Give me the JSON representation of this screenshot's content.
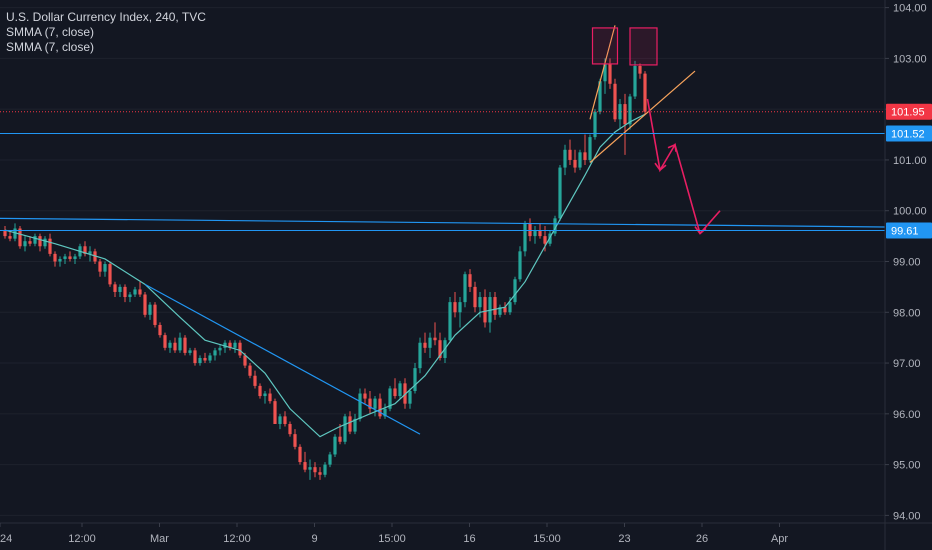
{
  "legend": {
    "title": "U.S. Dollar Currency Index, 240, TVC",
    "study1": "SMMA (7, close)",
    "study2": "SMMA (7, close)"
  },
  "colors": {
    "background": "#131722",
    "up": "#26a69a",
    "down": "#ef5350",
    "smma": "#5fc7c0",
    "trendline": "#2196f3",
    "price_line": "#f23645",
    "wedge": "#f7a35c",
    "box": "#e91e63",
    "arrow": "#e91e63",
    "axis_text": "#b2b5be"
  },
  "chart_data": {
    "type": "candlestick",
    "symbol": "U.S. Dollar Currency Index",
    "interval": "240",
    "source": "TVC",
    "y_axis": {
      "ticks": [
        104.0,
        103.0,
        102.0,
        101.0,
        100.0,
        99.0,
        98.0,
        97.0,
        96.0,
        95.0,
        94.0
      ],
      "ylim": [
        93.85,
        104.15
      ],
      "position": "right"
    },
    "x_axis": {
      "labels": [
        "24",
        "12:00",
        "Mar",
        "12:00",
        "9",
        "15:00",
        "16",
        "15:00",
        "23",
        "26",
        "Apr"
      ],
      "xlim": [
        0,
        176
      ]
    },
    "price_labels": [
      {
        "value": 101.95,
        "label": "101.95",
        "kind": "last-price"
      },
      {
        "value": 101.52,
        "label": "101.52",
        "kind": "horizontal-line"
      },
      {
        "value": 99.61,
        "label": "99.61",
        "kind": "horizontal-line"
      }
    ],
    "candles": [
      [
        0,
        99.6,
        99.7,
        99.45,
        99.5
      ],
      [
        1,
        99.5,
        99.6,
        99.4,
        99.45
      ],
      [
        2,
        99.45,
        99.75,
        99.4,
        99.65
      ],
      [
        3,
        99.65,
        99.7,
        99.25,
        99.3
      ],
      [
        4,
        99.3,
        99.5,
        99.2,
        99.4
      ],
      [
        5,
        99.4,
        99.5,
        99.3,
        99.35
      ],
      [
        6,
        99.35,
        99.55,
        99.3,
        99.5
      ],
      [
        7,
        99.5,
        99.55,
        99.2,
        99.3
      ],
      [
        8,
        99.3,
        99.5,
        99.25,
        99.45
      ],
      [
        9,
        99.45,
        99.55,
        99.1,
        99.15
      ],
      [
        10,
        99.15,
        99.2,
        98.9,
        99.0
      ],
      [
        11,
        99.0,
        99.1,
        98.9,
        99.05
      ],
      [
        12,
        99.05,
        99.15,
        98.95,
        99.1
      ],
      [
        13,
        99.1,
        99.2,
        99.0,
        99.05
      ],
      [
        14,
        99.05,
        99.15,
        98.95,
        99.1
      ],
      [
        15,
        99.1,
        99.35,
        99.05,
        99.3
      ],
      [
        16,
        99.3,
        99.4,
        99.1,
        99.15
      ],
      [
        17,
        99.15,
        99.3,
        99.0,
        99.2
      ],
      [
        18,
        99.2,
        99.25,
        98.95,
        99.0
      ],
      [
        19,
        99.0,
        99.05,
        98.7,
        98.8
      ],
      [
        20,
        98.8,
        99.0,
        98.7,
        98.95
      ],
      [
        21,
        98.95,
        99.0,
        98.5,
        98.55
      ],
      [
        22,
        98.55,
        98.6,
        98.3,
        98.4
      ],
      [
        23,
        98.4,
        98.55,
        98.3,
        98.5
      ],
      [
        24,
        98.5,
        98.55,
        98.2,
        98.3
      ],
      [
        25,
        98.3,
        98.4,
        98.2,
        98.35
      ],
      [
        26,
        98.35,
        98.5,
        98.3,
        98.45
      ],
      [
        27,
        98.45,
        98.6,
        98.3,
        98.35
      ],
      [
        28,
        98.35,
        98.4,
        97.9,
        97.95
      ],
      [
        29,
        97.95,
        98.2,
        97.85,
        98.15
      ],
      [
        30,
        98.15,
        98.2,
        97.7,
        97.75
      ],
      [
        31,
        97.75,
        97.8,
        97.5,
        97.55
      ],
      [
        32,
        97.55,
        97.6,
        97.25,
        97.3
      ],
      [
        33,
        97.3,
        97.45,
        97.2,
        97.4
      ],
      [
        34,
        97.4,
        97.5,
        97.2,
        97.25
      ],
      [
        35,
        97.25,
        97.6,
        97.2,
        97.5
      ],
      [
        36,
        97.5,
        97.55,
        97.15,
        97.2
      ],
      [
        37,
        97.2,
        97.3,
        97.15,
        97.25
      ],
      [
        38,
        97.25,
        97.3,
        96.95,
        97.0
      ],
      [
        39,
        97.0,
        97.15,
        96.95,
        97.1
      ],
      [
        40,
        97.1,
        97.2,
        97.0,
        97.05
      ],
      [
        41,
        97.05,
        97.2,
        97.0,
        97.15
      ],
      [
        42,
        97.15,
        97.3,
        97.05,
        97.25
      ],
      [
        43,
        97.25,
        97.35,
        97.15,
        97.3
      ],
      [
        44,
        97.3,
        97.45,
        97.2,
        97.4
      ],
      [
        45,
        97.4,
        97.45,
        97.25,
        97.3
      ],
      [
        46,
        97.3,
        97.45,
        97.2,
        97.4
      ],
      [
        47,
        97.4,
        97.45,
        97.1,
        97.15
      ],
      [
        48,
        97.15,
        97.2,
        96.9,
        96.95
      ],
      [
        49,
        96.95,
        97.0,
        96.7,
        96.75
      ],
      [
        50,
        96.75,
        96.85,
        96.5,
        96.55
      ],
      [
        51,
        96.55,
        96.6,
        96.3,
        96.35
      ],
      [
        52,
        96.35,
        96.45,
        96.2,
        96.4
      ],
      [
        53,
        96.4,
        96.5,
        96.2,
        96.25
      ],
      [
        54,
        96.25,
        96.3,
        95.8,
        95.8
      ],
      [
        55,
        95.8,
        96.0,
        95.7,
        95.95
      ],
      [
        56,
        95.95,
        96.05,
        95.75,
        95.8
      ],
      [
        57,
        95.8,
        95.85,
        95.55,
        95.6
      ],
      [
        58,
        95.6,
        95.7,
        95.3,
        95.35
      ],
      [
        59,
        95.35,
        95.4,
        95.0,
        95.05
      ],
      [
        60,
        95.05,
        95.25,
        94.85,
        94.9
      ],
      [
        61,
        94.9,
        95.1,
        94.7,
        94.95
      ],
      [
        62,
        94.95,
        95.05,
        94.75,
        94.85
      ],
      [
        63,
        94.85,
        94.95,
        94.7,
        94.8
      ],
      [
        64,
        94.8,
        95.05,
        94.75,
        95.0
      ],
      [
        65,
        95.0,
        95.25,
        94.95,
        95.2
      ],
      [
        66,
        95.2,
        95.6,
        95.15,
        95.55
      ],
      [
        67,
        95.55,
        95.8,
        95.4,
        95.45
      ],
      [
        68,
        95.45,
        96.0,
        95.4,
        95.95
      ],
      [
        69,
        95.95,
        96.05,
        95.6,
        95.65
      ],
      [
        70,
        95.65,
        96.0,
        95.6,
        95.9
      ],
      [
        71,
        95.9,
        96.5,
        95.85,
        96.4
      ],
      [
        72,
        96.4,
        96.5,
        96.2,
        96.3
      ],
      [
        73,
        96.3,
        96.45,
        96.0,
        96.1
      ],
      [
        74,
        96.1,
        96.35,
        95.95,
        96.3
      ],
      [
        75,
        96.3,
        96.4,
        95.9,
        95.95
      ],
      [
        76,
        95.95,
        96.2,
        95.9,
        96.1
      ],
      [
        77,
        96.1,
        96.55,
        96.05,
        96.5
      ],
      [
        78,
        96.5,
        96.7,
        96.3,
        96.35
      ],
      [
        79,
        96.35,
        96.65,
        96.3,
        96.6
      ],
      [
        80,
        96.6,
        96.7,
        96.1,
        96.2
      ],
      [
        81,
        96.2,
        96.5,
        96.1,
        96.45
      ],
      [
        82,
        96.45,
        97.0,
        96.4,
        96.9
      ],
      [
        83,
        96.9,
        97.5,
        96.8,
        97.4
      ],
      [
        84,
        97.4,
        97.6,
        97.2,
        97.3
      ],
      [
        85,
        97.3,
        97.6,
        97.1,
        97.5
      ],
      [
        86,
        97.5,
        97.8,
        97.35,
        97.45
      ],
      [
        87,
        97.45,
        97.6,
        97.05,
        97.1
      ],
      [
        88,
        97.1,
        97.5,
        97.0,
        97.45
      ],
      [
        89,
        97.45,
        98.3,
        97.4,
        98.2
      ],
      [
        90,
        98.2,
        98.4,
        97.9,
        98.0
      ],
      [
        91,
        98.0,
        98.3,
        97.7,
        98.2
      ],
      [
        92,
        98.2,
        98.8,
        98.1,
        98.75
      ],
      [
        93,
        98.75,
        98.85,
        98.4,
        98.5
      ],
      [
        94,
        98.5,
        98.6,
        98.0,
        98.1
      ],
      [
        95,
        98.1,
        98.4,
        97.9,
        98.3
      ],
      [
        96,
        98.3,
        98.45,
        97.7,
        97.8
      ],
      [
        97,
        97.8,
        98.4,
        97.6,
        98.3
      ],
      [
        98,
        98.3,
        98.4,
        97.85,
        97.95
      ],
      [
        99,
        97.95,
        98.15,
        97.9,
        98.1
      ],
      [
        100,
        98.1,
        98.2,
        97.95,
        98.0
      ],
      [
        101,
        98.0,
        98.3,
        97.95,
        98.2
      ],
      [
        102,
        98.2,
        98.7,
        98.15,
        98.65
      ],
      [
        103,
        98.65,
        99.3,
        98.6,
        99.2
      ],
      [
        104,
        99.2,
        99.8,
        99.1,
        99.75
      ],
      [
        105,
        99.75,
        99.85,
        99.4,
        99.5
      ],
      [
        106,
        99.5,
        99.7,
        99.35,
        99.6
      ],
      [
        107,
        99.6,
        99.75,
        99.45,
        99.5
      ],
      [
        108,
        99.5,
        99.7,
        99.2,
        99.35
      ],
      [
        109,
        99.35,
        99.6,
        99.3,
        99.55
      ],
      [
        110,
        99.55,
        99.9,
        99.5,
        99.85
      ],
      [
        111,
        99.85,
        100.9,
        99.8,
        100.85
      ],
      [
        112,
        100.85,
        101.3,
        100.7,
        101.2
      ],
      [
        113,
        101.2,
        101.4,
        100.9,
        101.0
      ],
      [
        114,
        101.0,
        101.2,
        100.75,
        100.85
      ],
      [
        115,
        100.85,
        101.2,
        100.8,
        101.15
      ],
      [
        116,
        101.15,
        101.5,
        100.9,
        101.0
      ],
      [
        117,
        101.0,
        101.5,
        100.95,
        101.45
      ],
      [
        118,
        101.45,
        102.0,
        101.4,
        101.95
      ],
      [
        119,
        101.95,
        102.6,
        101.9,
        102.55
      ],
      [
        120,
        102.55,
        103.0,
        102.3,
        102.9
      ],
      [
        121,
        102.9,
        103.0,
        102.4,
        102.5
      ],
      [
        122,
        102.5,
        102.6,
        101.75,
        101.8
      ],
      [
        123,
        101.8,
        102.2,
        101.6,
        102.1
      ],
      [
        124,
        102.1,
        102.3,
        101.1,
        101.7
      ],
      [
        125,
        101.7,
        102.3,
        101.6,
        102.25
      ],
      [
        126,
        102.25,
        102.95,
        102.2,
        102.85
      ],
      [
        127,
        102.85,
        102.9,
        102.6,
        102.7
      ],
      [
        128,
        102.7,
        102.75,
        101.9,
        101.95
      ]
    ],
    "smma": [
      [
        0,
        99.62
      ],
      [
        10,
        99.35
      ],
      [
        20,
        99.05
      ],
      [
        28,
        98.55
      ],
      [
        35,
        97.9
      ],
      [
        40,
        97.45
      ],
      [
        47,
        97.25
      ],
      [
        52,
        96.8
      ],
      [
        57,
        96.1
      ],
      [
        63,
        95.55
      ],
      [
        67,
        95.75
      ],
      [
        73,
        96.0
      ],
      [
        78,
        96.2
      ],
      [
        84,
        96.75
      ],
      [
        90,
        97.55
      ],
      [
        95,
        98.0
      ],
      [
        100,
        98.1
      ],
      [
        104,
        98.6
      ],
      [
        108,
        99.3
      ],
      [
        112,
        100.0
      ],
      [
        116,
        100.7
      ],
      [
        119,
        101.25
      ],
      [
        122,
        101.55
      ],
      [
        125,
        101.75
      ],
      [
        128,
        101.9
      ]
    ]
  }
}
